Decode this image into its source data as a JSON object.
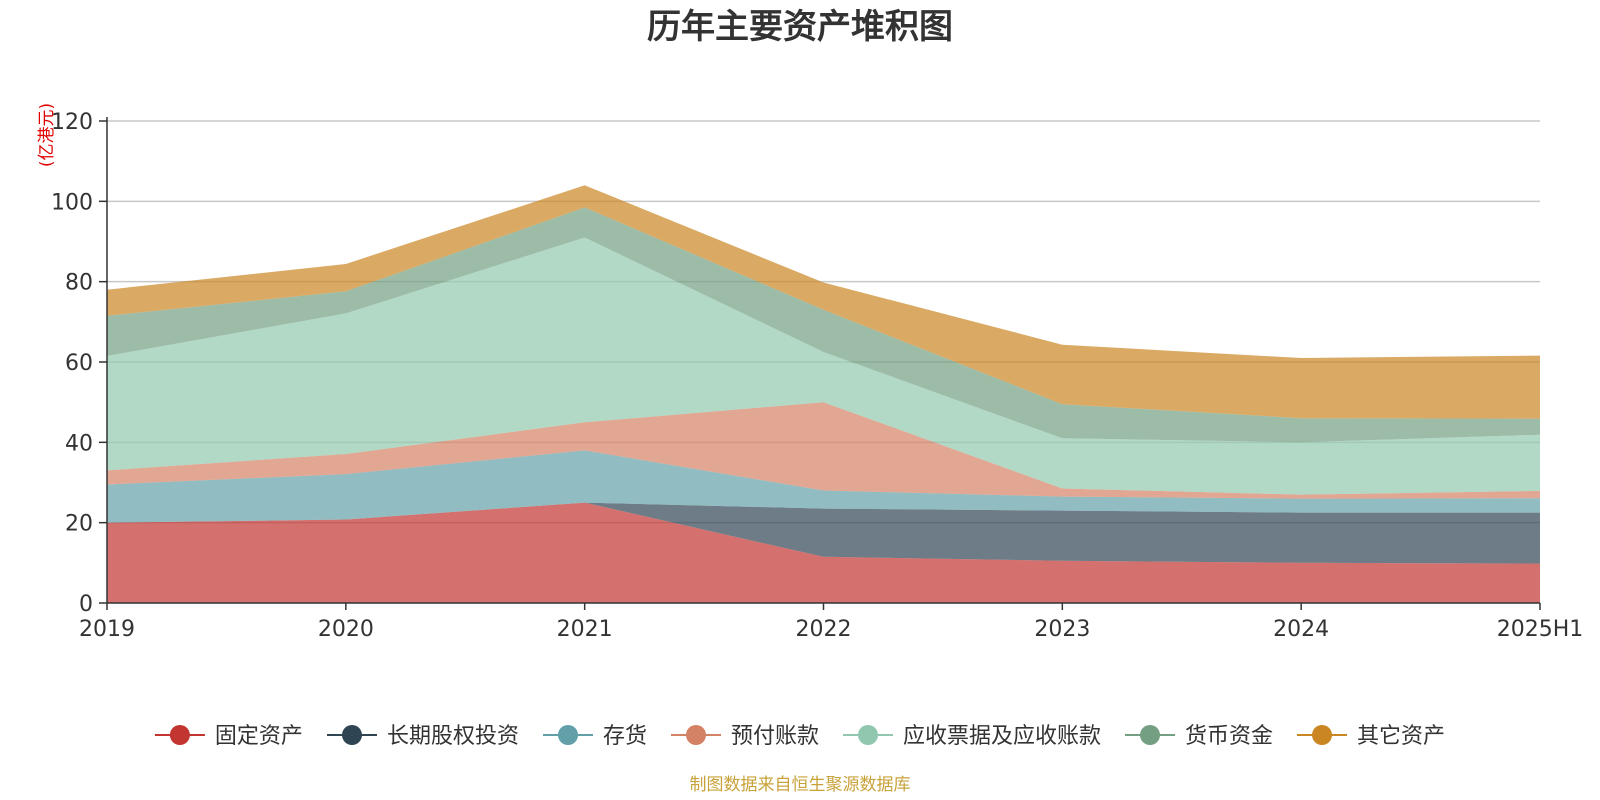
{
  "chart_data": {
    "type": "area",
    "stacked": true,
    "title": "历年主要资产堆积图",
    "unit_label": "(亿港元)",
    "categories": [
      "2019",
      "2020",
      "2021",
      "2022",
      "2023",
      "2024",
      "2025H1"
    ],
    "ylim": [
      0,
      120
    ],
    "yticks": [
      0,
      20,
      40,
      60,
      80,
      100,
      120
    ],
    "grid": true,
    "legend_position": "bottom",
    "series": [
      {
        "name": "固定资产",
        "color": "#c23531",
        "values": [
          20.0,
          20.8,
          25.0,
          11.5,
          10.5,
          10.0,
          9.8
        ]
      },
      {
        "name": "长期股权投资",
        "color": "#2f4554",
        "values": [
          0.0,
          0.0,
          0.0,
          12.0,
          12.5,
          12.5,
          12.7
        ]
      },
      {
        "name": "存货",
        "color": "#61a0a8",
        "values": [
          9.5,
          11.3,
          13.0,
          4.5,
          3.5,
          3.5,
          3.6
        ]
      },
      {
        "name": "预付账款",
        "color": "#d48265",
        "values": [
          3.5,
          5.0,
          7.0,
          22.0,
          2.0,
          1.0,
          1.8
        ]
      },
      {
        "name": "应收票据及应收账款",
        "color": "#91c7ae",
        "values": [
          28.5,
          35.0,
          46.0,
          12.5,
          12.5,
          13.0,
          14.0
        ]
      },
      {
        "name": "货币资金",
        "color": "#749f83",
        "values": [
          10.0,
          5.5,
          7.5,
          10.5,
          8.5,
          6.0,
          4.0
        ]
      },
      {
        "name": "其它资产",
        "color": "#ca8622",
        "values": [
          6.5,
          6.8,
          5.5,
          6.8,
          14.8,
          15.0,
          15.7
        ]
      }
    ]
  },
  "source_note": "制图数据来自恒生聚源数据库"
}
